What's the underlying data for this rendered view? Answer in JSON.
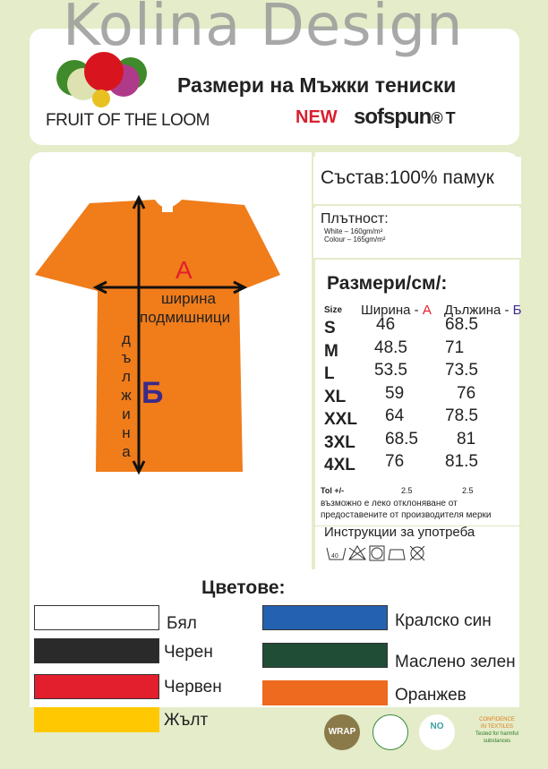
{
  "watermark": "Kolina Design",
  "header": {
    "title": "Размери на Мъжки тениски",
    "brand": "FRUIT OF THE LOOM",
    "new": "NEW",
    "product": "sofspun",
    "product_suffix": "® T"
  },
  "shirt": {
    "label_a": "A",
    "width_label_1": "ширина",
    "width_label_2": "подмишници",
    "label_b": "Б",
    "length_label": "дължина",
    "color": "#f07c1a"
  },
  "composition": "Състав:100% памук",
  "density": {
    "title": "Плътност:",
    "white": "White – 160gm/m²",
    "colour": "Colour – 165gm/m²"
  },
  "sizes": {
    "title": "Размери/см/:",
    "col_size": "Size",
    "col_width": "Ширина - ",
    "col_width_mark": "A",
    "col_length": "Дължина - ",
    "col_length_mark": "Б",
    "rows": [
      {
        "s": "S",
        "w": "46",
        "l": "68.5"
      },
      {
        "s": "M",
        "w": "48.5",
        "l": "71"
      },
      {
        "s": "L",
        "w": "53.5",
        "l": "73.5"
      },
      {
        "s": "XL",
        "w": "59",
        "l": "76"
      },
      {
        "s": "XXL",
        "w": "64",
        "l": "78.5"
      },
      {
        "s": "3XL",
        "w": "68.5",
        "l": "81"
      },
      {
        "s": "4XL",
        "w": "76",
        "l": "81.5"
      }
    ],
    "tol_label": "Tol +/-",
    "tol_w": "2.5",
    "tol_l": "2.5",
    "note_1": "възможно е леко отклоняване от",
    "note_2": "предоставените от производителя мерки"
  },
  "care": {
    "title": "Инструкции за употреба",
    "wash_temp": "40",
    "icons": [
      "wash-40-icon",
      "no-bleach-icon",
      "tumble-dry-icon",
      "iron-low-icon",
      "no-dry-clean-icon"
    ]
  },
  "colors": {
    "title": "Цветове:",
    "items": [
      {
        "name": "Бял",
        "hex": "#ffffff"
      },
      {
        "name": "Черен",
        "hex": "#2a2a2a"
      },
      {
        "name": "Червен",
        "hex": "#e31e2d"
      },
      {
        "name": "Жълт",
        "hex": "#ffc800"
      },
      {
        "name": "Кралско син",
        "hex": "#2461b1"
      },
      {
        "name": "Маслено зелен",
        "hex": "#1f4d36"
      },
      {
        "name": "Оранжев",
        "hex": "#ee6a1f"
      }
    ]
  },
  "certs": {
    "wrap": "WRAP",
    "no_child": "NO",
    "confidence_1": "CONFIDENCE",
    "confidence_2": "IN TEXTILES",
    "confidence_3": "Tested for harmful substances"
  }
}
